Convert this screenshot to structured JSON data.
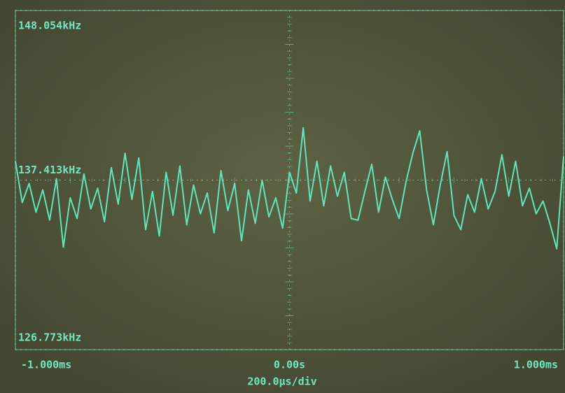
{
  "chart_data": {
    "type": "line",
    "annotation": "200.0μs/div",
    "xlim": [
      -1,
      1
    ],
    "xticks": [
      {
        "value": -1,
        "label": "-1.000ms"
      },
      {
        "value": 0,
        "label": "0.00s"
      },
      {
        "value": 1,
        "label": "1.000ms"
      }
    ],
    "ylim": [
      126.773,
      148.054
    ],
    "yticks": [
      {
        "value": 148.054,
        "label": "148.054kHz"
      },
      {
        "value": 137.413,
        "label": "137.413kHz"
      },
      {
        "value": 126.773,
        "label": "126.773kHz"
      }
    ],
    "grid": true,
    "x": [
      -1,
      -0.975,
      -0.95,
      -0.925,
      -0.9,
      -0.875,
      -0.85,
      -0.825,
      -0.8,
      -0.775,
      -0.75,
      -0.725,
      -0.7,
      -0.675,
      -0.65,
      -0.625,
      -0.6,
      -0.575,
      -0.55,
      -0.525,
      -0.5,
      -0.475,
      -0.45,
      -0.425,
      -0.4,
      -0.375,
      -0.35,
      -0.325,
      -0.3,
      -0.275,
      -0.25,
      -0.225,
      -0.2,
      -0.175,
      -0.15,
      -0.125,
      -0.1,
      -0.075,
      -0.05,
      -0.025,
      0,
      0.025,
      0.05,
      0.075,
      0.1,
      0.125,
      0.15,
      0.175,
      0.2,
      0.225,
      0.25,
      0.275,
      0.3,
      0.325,
      0.35,
      0.375,
      0.4,
      0.425,
      0.45,
      0.475,
      0.5,
      0.525,
      0.55,
      0.575,
      0.6,
      0.625,
      0.65,
      0.675,
      0.7,
      0.725,
      0.75,
      0.775,
      0.8,
      0.825,
      0.85,
      0.875,
      0.9,
      0.925,
      0.95,
      0.975,
      1
    ],
    "series": [
      {
        "color": "#5fe6b8",
        "values": [
          138.6,
          136.0,
          137.2,
          135.4,
          136.8,
          134.9,
          137.5,
          133.2,
          136.3,
          135.0,
          137.8,
          135.6,
          136.9,
          134.8,
          138.2,
          135.9,
          139.1,
          136.2,
          138.8,
          134.3,
          136.7,
          133.9,
          137.9,
          135.2,
          138.3,
          134.6,
          137.1,
          135.3,
          136.6,
          134.1,
          138.0,
          135.5,
          137.2,
          133.6,
          136.8,
          134.7,
          137.4,
          135.1,
          136.3,
          134.4,
          137.9,
          136.6,
          140.7,
          136.1,
          138.6,
          135.8,
          138.3,
          136.4,
          137.9,
          135.0,
          134.9,
          136.7,
          138.4,
          135.4,
          137.6,
          136.2,
          135.0,
          137.3,
          139.1,
          140.5,
          136.8,
          134.6,
          137.1,
          139.2,
          135.2,
          134.3,
          136.5,
          135.4,
          137.5,
          135.6,
          136.7,
          139.0,
          136.4,
          138.6,
          135.8,
          136.9,
          135.3,
          136.1,
          134.7,
          133.1,
          138.9
        ]
      }
    ]
  }
}
